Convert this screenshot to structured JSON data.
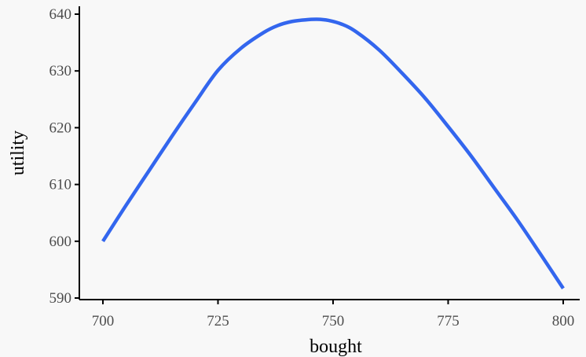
{
  "chart_data": {
    "type": "line",
    "title": "",
    "xlabel": "bought",
    "ylabel": "utility",
    "xlim": [
      700,
      800
    ],
    "ylim": [
      590,
      640
    ],
    "x_ticks": [
      700,
      725,
      750,
      775,
      800
    ],
    "y_ticks": [
      590,
      600,
      610,
      620,
      630,
      640
    ],
    "x_tick_labels": [
      "700",
      "725",
      "750",
      "775",
      "800"
    ],
    "y_tick_labels": [
      "590",
      "600",
      "610",
      "620",
      "630",
      "640"
    ],
    "grid": false,
    "legend": "none",
    "series": [
      {
        "color": "#3366ee",
        "x": [
          700,
          705,
          710,
          715,
          720,
          725,
          730,
          735,
          738,
          741,
          744,
          746.5,
          749,
          752,
          755,
          760,
          765,
          770,
          775,
          780,
          785,
          790,
          795,
          800
        ],
        "y": [
          600,
          606.3,
          612.4,
          618.5,
          624.4,
          630.1,
          634.0,
          636.8,
          638.0,
          638.7,
          639.0,
          639.1,
          638.9,
          638.2,
          636.9,
          633.7,
          629.6,
          625.2,
          620.2,
          615.0,
          609.4,
          603.8,
          597.8,
          591.7
        ]
      }
    ]
  }
}
